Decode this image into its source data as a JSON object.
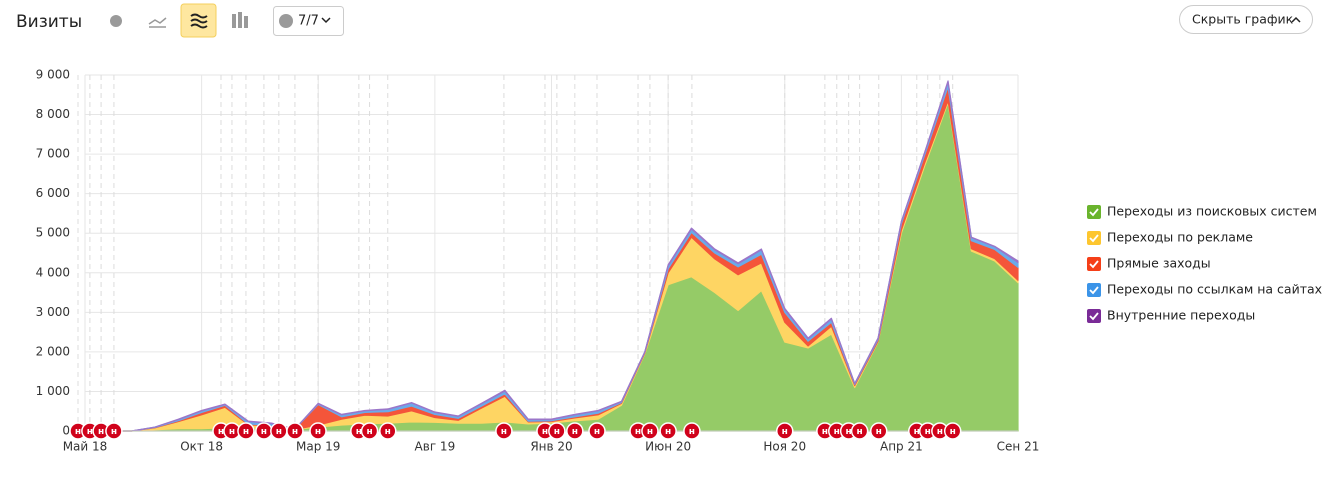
{
  "header": {
    "title": "Визиты",
    "filter_label": "7/7",
    "hide_button": "Скрыть график"
  },
  "chart_data": {
    "type": "stacked-area",
    "categories": [
      "Май 18",
      null,
      null,
      null,
      null,
      "Окт 18",
      null,
      null,
      null,
      null,
      "Мар 19",
      null,
      null,
      null,
      null,
      "Авг 19",
      null,
      null,
      null,
      null,
      "Янв 20",
      null,
      null,
      null,
      null,
      "Июн 20",
      null,
      null,
      null,
      null,
      "Ноя 20",
      null,
      null,
      null,
      null,
      "Апр 21",
      null,
      null,
      null,
      null,
      "Сен 21"
    ],
    "series": [
      {
        "name": "Переходы из поисковых систем",
        "color": "#95cb67",
        "legend_color": "#6ab42d",
        "values": [
          0,
          0,
          0,
          30,
          60,
          60,
          80,
          80,
          60,
          40,
          100,
          150,
          180,
          200,
          230,
          220,
          200,
          200,
          230,
          180,
          200,
          260,
          300,
          650,
          1950,
          3700,
          3900,
          3500,
          3050,
          3550,
          2250,
          2100,
          2450,
          1100,
          2250,
          5000,
          6700,
          8300,
          4550,
          4300,
          3750
        ]
      },
      {
        "name": "Переходы по рекламе",
        "color": "#fed563",
        "legend_color": "#fdc62f",
        "values": [
          0,
          0,
          0,
          50,
          180,
          350,
          520,
          80,
          60,
          0,
          50,
          150,
          220,
          180,
          280,
          120,
          70,
          380,
          650,
          50,
          40,
          70,
          110,
          50,
          20,
          300,
          1000,
          850,
          900,
          700,
          500,
          50,
          200,
          50,
          20,
          80,
          80,
          50,
          60,
          60,
          60
        ]
      },
      {
        "name": "Прямые заходы",
        "color": "#f4553a",
        "legend_color": "#f53f18",
        "values": [
          0,
          0,
          0,
          10,
          20,
          60,
          50,
          20,
          20,
          10,
          520,
          60,
          70,
          110,
          120,
          80,
          50,
          50,
          60,
          20,
          20,
          30,
          40,
          20,
          20,
          100,
          120,
          150,
          200,
          220,
          250,
          120,
          100,
          30,
          40,
          160,
          200,
          350,
          200,
          230,
          330
        ]
      },
      {
        "name": "Переходы по ссылкам на сайтах",
        "color": "#6aaaea",
        "legend_color": "#3b94e8",
        "values": [
          0,
          0,
          0,
          10,
          30,
          40,
          20,
          60,
          50,
          0,
          20,
          50,
          40,
          60,
          80,
          50,
          50,
          60,
          70,
          40,
          30,
          50,
          60,
          20,
          10,
          80,
          90,
          80,
          80,
          110,
          80,
          60,
          80,
          20,
          30,
          50,
          60,
          120,
          80,
          70,
          120
        ]
      },
      {
        "name": "Внутренние переходы",
        "color": "#9b76c9",
        "legend_color": "#7a2b97",
        "values": [
          0,
          0,
          0,
          0,
          10,
          10,
          10,
          10,
          10,
          0,
          10,
          10,
          10,
          10,
          10,
          10,
          10,
          10,
          20,
          10,
          10,
          10,
          10,
          10,
          0,
          20,
          20,
          20,
          20,
          20,
          20,
          20,
          20,
          0,
          10,
          10,
          10,
          30,
          10,
          10,
          40
        ]
      }
    ],
    "ylim": [
      0,
      9000
    ],
    "yticks": [
      0,
      {
        "value": 1000,
        "label": "1 000"
      },
      {
        "value": 2000,
        "label": "2 000"
      },
      {
        "value": 3000,
        "label": "3 000"
      },
      {
        "value": 4000,
        "label": "4 000"
      },
      {
        "value": 5000,
        "label": "5 000"
      },
      {
        "value": 6000,
        "label": "6 000"
      },
      {
        "value": 7000,
        "label": "7 000"
      },
      {
        "value": 8000,
        "label": "8 000"
      },
      {
        "value": 9000,
        "label": "9 000"
      }
    ],
    "grid": true,
    "events": {
      "label": "н",
      "x": [
        -0.3,
        0.21,
        0.69,
        1.24,
        5.83,
        6.3,
        6.9,
        7.67,
        8.31,
        9.0,
        9.99,
        11.74,
        12.2,
        12.98,
        17.96,
        19.72,
        20.23,
        21.0,
        21.95,
        23.71,
        24.22,
        25.0,
        26.02,
        30.0,
        31.72,
        32.23,
        32.74,
        33.21,
        34.03,
        35.66,
        36.13,
        36.65,
        37.2
      ]
    }
  }
}
